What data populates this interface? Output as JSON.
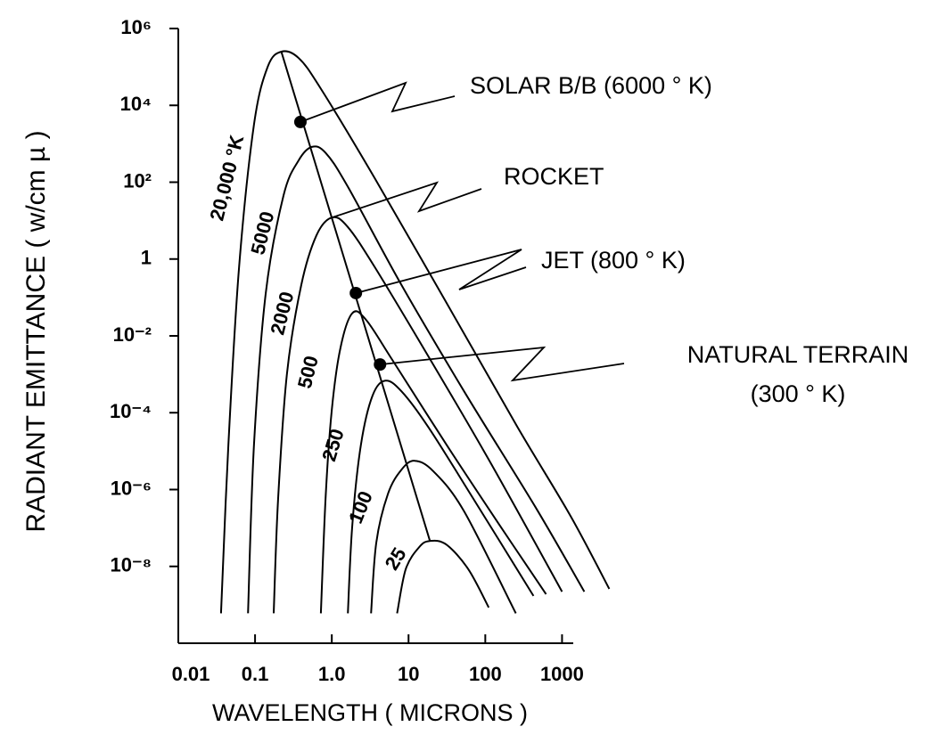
{
  "chart_data": {
    "type": "line",
    "x_label": "WAVELENGTH ( MICRONS )",
    "y_label": "RADIANT EMITTANCE ( w/cm µ )",
    "xscale": "log",
    "yscale": "log",
    "xlim": [
      0.01,
      1400
    ],
    "ylim": [
      1e-10,
      1000000
    ],
    "xticks": [
      {
        "value": 0.01,
        "label": "0.01"
      },
      0.1,
      {
        "value": 1,
        "label": "1.0"
      },
      10,
      100,
      1000
    ],
    "yticks": [
      {
        "value": 1000000,
        "label": "10⁶"
      },
      {
        "value": 10000,
        "label": "10⁴"
      },
      {
        "value": 100,
        "label": "10²"
      },
      1,
      {
        "value": 0.01,
        "label": "10⁻²"
      },
      {
        "value": 0.0001,
        "label": "10⁻⁴"
      },
      {
        "value": 1e-06,
        "label": "10⁻⁶"
      },
      {
        "value": 1e-08,
        "label": "10⁻⁸"
      }
    ],
    "color": "#000000",
    "series": [
      {
        "name": "20,000 °K",
        "color": "#000000",
        "x": [
          0.036,
          0.045,
          0.062,
          0.097,
          0.146,
          0.22,
          0.37,
          0.72,
          3.6,
          31,
          262,
          1300,
          4130
        ],
        "values": [
          6e-10,
          1.5e-05,
          0.63,
          3200,
          100000,
          250000,
          170000,
          27000,
          130,
          0.074,
          4.3e-05,
          2e-07,
          2.6e-09
        ]
      },
      {
        "name": "5000",
        "color": "#000000",
        "x": [
          0.081,
          0.097,
          0.138,
          0.235,
          0.37,
          0.55,
          0.83,
          1.62,
          8.1,
          53,
          450,
          1950
        ],
        "values": [
          6e-10,
          1.5e-05,
          0.13,
          45,
          370,
          830,
          580,
          76,
          0.21,
          0.00036,
          3.5e-07,
          2.2e-09
        ]
      },
      {
        "name": "2000",
        "color": "#000000",
        "x": [
          0.175,
          0.2,
          0.26,
          0.4,
          0.63,
          1.0,
          1.6,
          3.6,
          18,
          117,
          1000
        ],
        "values": [
          6e-10,
          6e-07,
          0.001,
          0.21,
          4.1,
          12,
          7,
          0.63,
          0.003,
          5e-06,
          2.2e-09
        ]
      },
      {
        "name": "500",
        "color": "#000000",
        "x": [
          0.72,
          0.83,
          1.0,
          1.3,
          1.85,
          2.8,
          6.2,
          31,
          153,
          620
        ],
        "values": [
          6e-10,
          6e-07,
          0.00012,
          0.005,
          0.039,
          0.026,
          0.0023,
          1.5e-05,
          1.2e-07,
          1.9e-09
        ]
      },
      {
        "name": "250",
        "color": "#000000",
        "x": [
          1.62,
          1.85,
          2.4,
          3.4,
          5,
          8.1,
          18,
          69,
          425
        ],
        "values": [
          6e-10,
          1.2e-07,
          1.5e-05,
          0.00028,
          0.00068,
          0.00036,
          4.3e-05,
          6e-07,
          1.7e-09
        ]
      },
      {
        "name": "100",
        "color": "#000000",
        "x": [
          3.25,
          3.8,
          5.4,
          8.1,
          12,
          21,
          53,
          250
        ],
        "values": [
          6e-10,
          4.2e-08,
          7.8e-07,
          3.3e-06,
          5.6e-06,
          3e-06,
          2.7e-07,
          6e-10
        ]
      },
      {
        "name": "25",
        "color": "#000000",
        "x": [
          7.1,
          9.2,
          13.8,
          19,
          31,
          60,
          111
        ],
        "values": [
          6e-10,
          8.5e-09,
          3.2e-08,
          4.6e-08,
          3.7e-08,
          8.5e-09,
          8.5e-10
        ]
      }
    ],
    "peak_line": {
      "x": [
        0.22,
        19
      ],
      "values": [
        250000,
        4.6e-08
      ]
    },
    "annotations": [
      {
        "text": [
          "SOLAR  B/B  (6000 ° K)"
        ],
        "x": 0.39,
        "y": 3700,
        "marker": true
      },
      {
        "text": [
          "ROCKET"
        ],
        "x": 1.0,
        "y": 12,
        "marker": false
      },
      {
        "text": [
          "JET  (800 ° K)"
        ],
        "x": 2.06,
        "y": 0.13,
        "marker": true
      },
      {
        "text": [
          "NATURAL  TERRAIN",
          "(300 ° K)"
        ],
        "x": 4.25,
        "y": 0.0018,
        "marker": true
      }
    ]
  }
}
